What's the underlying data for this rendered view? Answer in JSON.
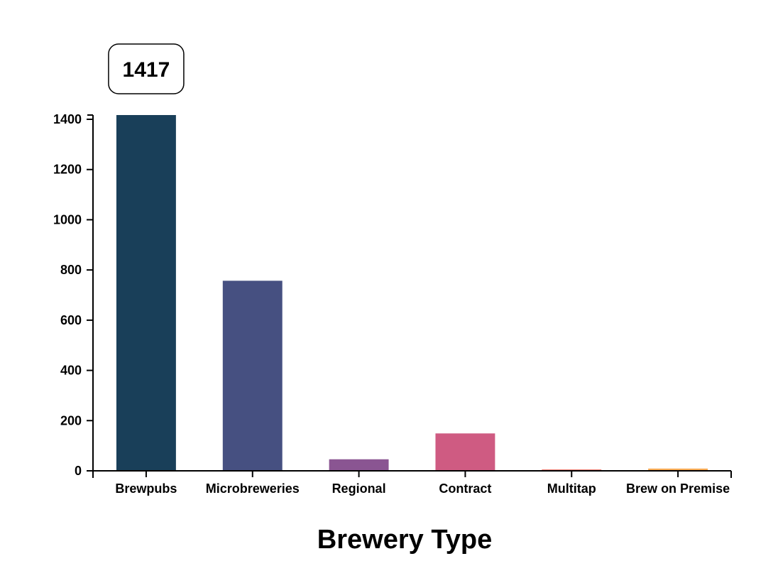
{
  "chart_data": {
    "type": "bar",
    "categories": [
      "Brewpubs",
      "Microbreweries",
      "Regional",
      "Contract",
      "Multitap",
      "Brew on Premise"
    ],
    "values": [
      1417,
      757,
      46,
      149,
      3,
      9
    ],
    "colors": [
      "#193f59",
      "#465081",
      "#8a5592",
      "#cf5b82",
      "#ee7a6e",
      "#f6a952"
    ],
    "title": "",
    "xlabel": "Brewery Type",
    "ylabel": "",
    "ylim": [
      0,
      1417
    ],
    "yticks": [
      0,
      200,
      400,
      600,
      800,
      1000,
      1200,
      1400
    ],
    "grid": false,
    "legend": "none",
    "tooltip": {
      "category": "Brewpubs",
      "value_text": "1417"
    }
  }
}
